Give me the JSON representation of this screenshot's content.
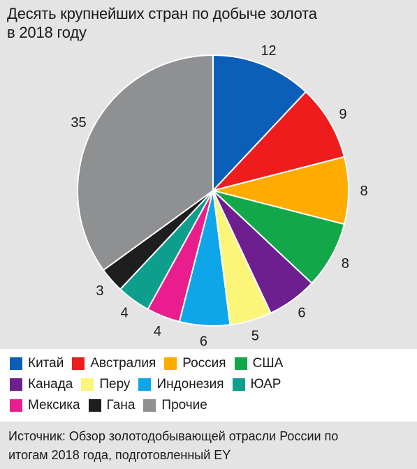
{
  "header": {
    "title_line1": "Десять крупнейших стран по добыче золота",
    "title_line2": "в 2018 году"
  },
  "chart_data": {
    "type": "pie",
    "unit": "%",
    "slices": [
      {
        "label": "Китай",
        "value": 12,
        "color": "#0b5fb8"
      },
      {
        "label": "Австралия",
        "value": 9,
        "color": "#ee1c1c"
      },
      {
        "label": "Россия",
        "value": 8,
        "color": "#ffab00"
      },
      {
        "label": "США",
        "value": 8,
        "color": "#12a84a"
      },
      {
        "label": "Канада",
        "value": 6,
        "color": "#6d1f8f"
      },
      {
        "label": "Перу",
        "value": 5,
        "color": "#fbf57a"
      },
      {
        "label": "Индонезия",
        "value": 6,
        "color": "#0ea6e8"
      },
      {
        "label": "Мексика",
        "value": 4,
        "color": "#ea1d8e"
      },
      {
        "label": "ЮАР",
        "value": 4,
        "color": "#0e9e8e"
      },
      {
        "label": "Гана",
        "value": 3,
        "color": "#1e1e1e"
      },
      {
        "label": "Прочие",
        "value": 35,
        "color": "#8f9092"
      }
    ],
    "start_angle": "12 o'clock",
    "direction": "clockwise",
    "legend_placement": "bottom"
  },
  "legend": {
    "rows": [
      [
        "Китай",
        "Австралия",
        "Россия",
        "США"
      ],
      [
        "Канада",
        "Перу",
        "Индонезия",
        "ЮАР"
      ],
      [
        "Мексика",
        "Гана",
        "Прочие"
      ]
    ]
  },
  "footer": {
    "source_line1": "Источник: Обзор золотодобывающей отрасли России по",
    "source_line2": "итогам 2018 года, подготовленный EY"
  }
}
